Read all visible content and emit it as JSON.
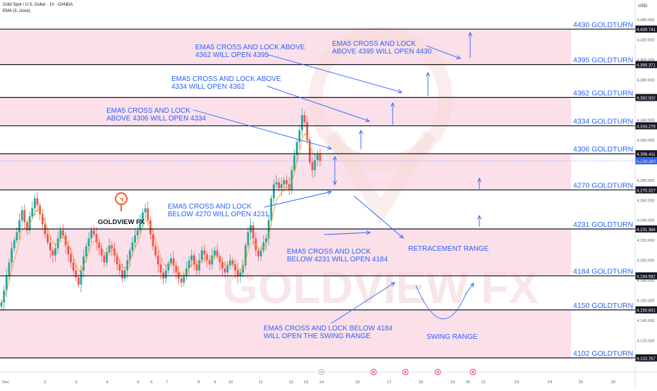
{
  "header": {
    "symbol_line": "Gold Spot / U.S. Dollar · 1h · OANDA",
    "indicator_line": "EMA (5, close)",
    "currency": "USD"
  },
  "watermark": "GOLDVIEW FX",
  "logo": {
    "text": "GOLDVIEW FX"
  },
  "colors": {
    "zone_fill": "#fbe0ea",
    "level_line": "#131722",
    "annotation_blue": "#2962ff",
    "candle_up": "#26a69a",
    "candle_down": "#ef5350",
    "ema": "#ff9800",
    "logo_orange": "#f26b3a"
  },
  "chart_data": {
    "type": "candlestick",
    "price_axis": {
      "min": 4100,
      "max": 4440,
      "ticks": [
        4440,
        4420,
        4400,
        4380,
        4360,
        4340,
        4320,
        4300,
        4280,
        4260,
        4240,
        4220,
        4200,
        4180,
        4160,
        4140,
        4120,
        4100
      ],
      "tick_labels": [
        "4,440.000",
        "4,420.000",
        "4,400.000",
        "4,380.000",
        "4,360.000",
        "4,340.000",
        "4,320.000",
        "4,300.000",
        "4,280.000",
        "4,260.000",
        "4,240.000",
        "4,220.000",
        "4,200.000",
        "4,180.000",
        "4,160.000",
        "4,140.000",
        "4,120.000",
        "4,100.000"
      ]
    },
    "time_axis": {
      "labels": [
        "Dec",
        "2",
        "3",
        "4",
        "5",
        "6",
        "7",
        "8",
        "9",
        "10",
        "11",
        "12",
        "13",
        "14",
        "16",
        "17",
        "18",
        "19",
        "20",
        "21",
        "23",
        "24",
        "25",
        "26"
      ]
    },
    "levels": [
      {
        "price": 4430.741,
        "label": "4430 GOLDTURN",
        "tag": "4,430.741"
      },
      {
        "price": 4395.371,
        "label": "4395 GOLDTURN",
        "tag": "4,395.371"
      },
      {
        "price": 4362.502,
        "label": "4362 GOLDTURN",
        "tag": "4,362.502"
      },
      {
        "price": 4334.278,
        "label": "4334 GOLDTURN",
        "tag": "4,334.278"
      },
      {
        "price": 4306.411,
        "label": "4306 GOLDTURN",
        "tag": "4,306.411"
      },
      {
        "price": 4270.327,
        "label": "4270 GOLDTURN",
        "tag": "4,270.327"
      },
      {
        "price": 4231.384,
        "label": "4231 GOLDTURN",
        "tag": "4,231.384"
      },
      {
        "price": 4184.582,
        "label": "4184 GOLDTURN",
        "tag": "4,184.582"
      },
      {
        "price": 4150.641,
        "label": "4150  GOLDTURN",
        "tag": "4,150.641"
      },
      {
        "price": 4102.767,
        "label": "4102 GOLDTURN",
        "tag": "4,102.767"
      }
    ],
    "current_price": {
      "price": 4299.38,
      "tag": "4,299.380"
    },
    "shaded_zones": [
      [
        4395.371,
        4430.741
      ],
      [
        4334.278,
        4362.502
      ],
      [
        4270.327,
        4306.411
      ],
      [
        4184.582,
        4231.384
      ],
      [
        4102.767,
        4150.641
      ]
    ],
    "annotations": [
      {
        "lines": [
          "EMA5 CROSS AND LOCK",
          "ABOVE 4395 WILL OPEN 4430"
        ]
      },
      {
        "lines": [
          "EMA5 CROSS AND LOCK ABOVE",
          "4362 WILL OPEN 4395"
        ]
      },
      {
        "lines": [
          "EMA5 CROSS AND LOCK ABOVE",
          "4334 WILL OPEN 4362"
        ]
      },
      {
        "lines": [
          "EMA5 CROSS AND LOCK",
          "ABOVE 4306 WILL OPEN 4334"
        ]
      },
      {
        "lines": [
          "EMA5 CROSS AND LOCK",
          "BELOW 4270 WILL OPEN 4231"
        ]
      },
      {
        "lines": [
          "EMA5 CROSS AND LOCK",
          "BELOW 4231 WILL OPEN 4184"
        ]
      },
      {
        "lines": [
          "RETRACEMENT RANGE"
        ]
      },
      {
        "lines": [
          "EMA5 CROSS AND LOCK BELOW 4184",
          "WILL OPEN THE SWING RANGE"
        ]
      },
      {
        "lines": [
          "SWING RANGE"
        ]
      }
    ],
    "closes": [
      4158,
      4170,
      4185,
      4198,
      4212,
      4220,
      4228,
      4240,
      4250,
      4238,
      4230,
      4244,
      4252,
      4262,
      4255,
      4246,
      4236,
      4226,
      4218,
      4210,
      4205,
      4212,
      4222,
      4230,
      4225,
      4215,
      4206,
      4198,
      4190,
      4183,
      4176,
      4190,
      4204,
      4214,
      4222,
      4230,
      4226,
      4218,
      4212,
      4205,
      4198,
      4208,
      4215,
      4212,
      4205,
      4196,
      4190,
      4182,
      4190,
      4200,
      4210,
      4218,
      4225,
      4230,
      4240,
      4248,
      4252,
      4240,
      4226,
      4214,
      4205,
      4196,
      4188,
      4182,
      4190,
      4197,
      4202,
      4195,
      4188,
      4182,
      4178,
      4184,
      4192,
      4200,
      4205,
      4196,
      4190,
      4200,
      4210,
      4206,
      4200,
      4196,
      4205,
      4210,
      4204,
      4198,
      4192,
      4188,
      4195,
      4200,
      4196,
      4190,
      4184,
      4188,
      4195,
      4215,
      4228,
      4235,
      4222,
      4210,
      4204,
      4210,
      4218,
      4222,
      4240,
      4262,
      4276,
      4278,
      4272,
      4276,
      4280,
      4276,
      4270,
      4290,
      4305,
      4318,
      4330,
      4345,
      4338,
      4320,
      4298,
      4290,
      4300,
      4306,
      4299
    ]
  }
}
